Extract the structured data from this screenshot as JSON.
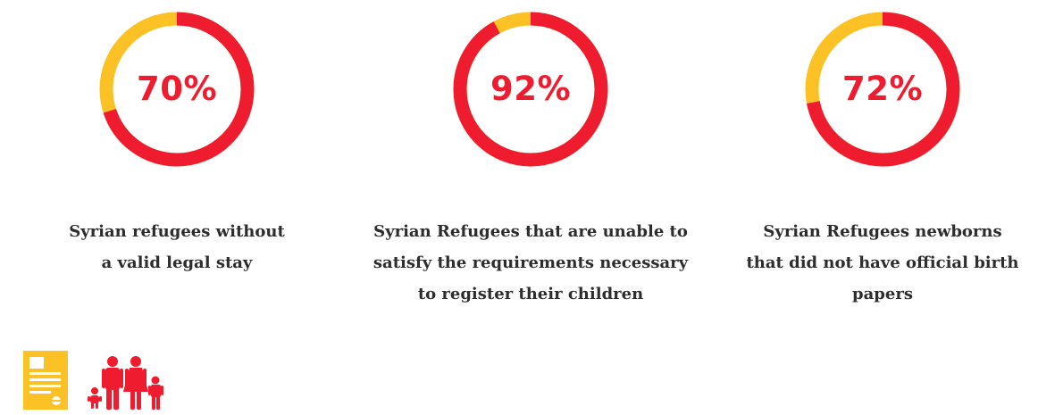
{
  "colors": {
    "accent": "#ee1c2e",
    "secondary": "#fcc124",
    "text": "#2d2d2d"
  },
  "chart_data": [
    {
      "type": "pie",
      "variant": "donut",
      "percent_label": "70%",
      "value": 70,
      "remainder": 30,
      "caption": "Syrian refugees without a valid legal stay",
      "caption_lines": [
        "Syrian refugees without",
        "a valid legal stay"
      ]
    },
    {
      "type": "pie",
      "variant": "donut",
      "percent_label": "92%",
      "value": 92,
      "remainder": 8,
      "caption": "Syrian Refugees that are unable to satisfy the requirements necessary to register their children",
      "caption_lines": [
        "Syrian Refugees that are unable to",
        "satisfy the requirements necessary",
        "to register their children"
      ]
    },
    {
      "type": "pie",
      "variant": "donut",
      "percent_label": "72%",
      "value": 72,
      "remainder": 28,
      "caption": "Syrian Refugees newborns that did not have official birth papers",
      "caption_lines": [
        "Syrian Refugees newborns",
        "that did not have official birth",
        "papers"
      ]
    }
  ],
  "icons": [
    "document-icon",
    "family-icon"
  ]
}
